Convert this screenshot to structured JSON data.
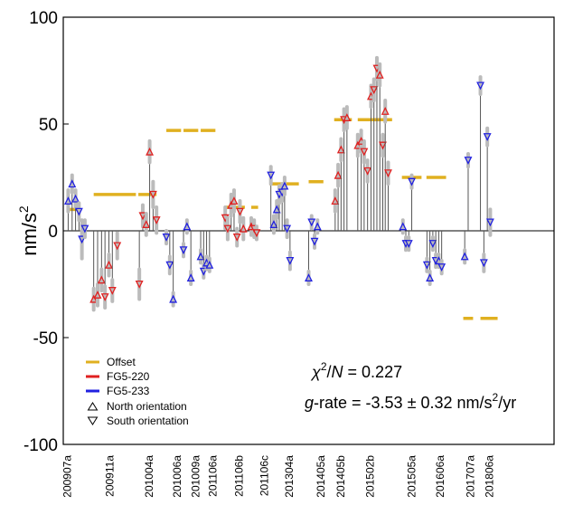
{
  "chart_data": {
    "type": "scatter",
    "ylabel": "nm/s",
    "ylabel_sup": "2",
    "ylim": [
      -100,
      100
    ],
    "yticks": [
      -100,
      -50,
      0,
      50,
      100
    ],
    "xtick_labels": [
      "200907a",
      "200911a",
      "201004a",
      "201006a",
      "201009a",
      "201106a",
      "201106b",
      "201106c",
      "201304a",
      "201405a",
      "201405b",
      "201502b",
      "201505a",
      "201606a",
      "201707a",
      "201806a"
    ],
    "legend": {
      "placement": "bottom-left",
      "offset": "Offset",
      "fg5_220": "FG5-220",
      "fg5_233": "FG5-233",
      "north": "North orientation",
      "south": "South orientation"
    },
    "annotations": {
      "chi_symbol": "χ",
      "chi_sup": "2",
      "chi_slash": "/",
      "chi_n": "N",
      "chi_value": "= 0.227",
      "g_symbol": "g",
      "grate_text": "-rate = -3.53 ± 0.32 nm/s",
      "grate_sup": "2",
      "grate_tail": "/yr"
    },
    "colors": {
      "offset": "#e0b020",
      "fg5_220": "#e02020",
      "fg5_233": "#2020e0",
      "stem": "#555555",
      "error": "#bbbbbb"
    },
    "offsets": [
      {
        "x1": 0.8,
        "x2": 3.5,
        "y": 10
      },
      {
        "x1": 6.2,
        "x2": 14.8,
        "y": 17
      },
      {
        "x1": 15.3,
        "x2": 19.0,
        "y": 17
      },
      {
        "x1": 21.0,
        "x2": 24.0,
        "y": 47
      },
      {
        "x1": 24.5,
        "x2": 27.5,
        "y": 47
      },
      {
        "x1": 28.0,
        "x2": 31.0,
        "y": 47
      },
      {
        "x1": 33.0,
        "x2": 37.0,
        "y": 11
      },
      {
        "x1": 38.3,
        "x2": 39.7,
        "y": 11
      },
      {
        "x1": 42.0,
        "x2": 48.0,
        "y": 22
      },
      {
        "x1": 50.0,
        "x2": 53.0,
        "y": 23
      },
      {
        "x1": 55.2,
        "x2": 58.8,
        "y": 52
      },
      {
        "x1": 60.0,
        "x2": 67.0,
        "y": 52
      },
      {
        "x1": 69.0,
        "x2": 73.0,
        "y": 25
      },
      {
        "x1": 74.0,
        "x2": 78.0,
        "y": 25
      },
      {
        "x1": 81.5,
        "x2": 83.5,
        "y": -41
      },
      {
        "x1": 85.0,
        "x2": 88.5,
        "y": -41
      }
    ],
    "points": [
      {
        "x": 1.0,
        "y": 14,
        "inst": "233",
        "orient": "N",
        "err": 5
      },
      {
        "x": 1.8,
        "y": 22,
        "inst": "233",
        "orient": "N",
        "err": 4
      },
      {
        "x": 2.5,
        "y": 15,
        "inst": "233",
        "orient": "N",
        "err": 4
      },
      {
        "x": 3.2,
        "y": 9,
        "inst": "233",
        "orient": "S",
        "err": 4
      },
      {
        "x": 3.8,
        "y": -4,
        "inst": "233",
        "orient": "S",
        "err": 9
      },
      {
        "x": 4.4,
        "y": 1,
        "inst": "233",
        "orient": "S",
        "err": 4
      },
      {
        "x": 6.2,
        "y": -32,
        "inst": "220",
        "orient": "N",
        "err": 5
      },
      {
        "x": 7.0,
        "y": -30,
        "inst": "220",
        "orient": "N",
        "err": 5
      },
      {
        "x": 7.8,
        "y": -23,
        "inst": "220",
        "orient": "N",
        "err": 5
      },
      {
        "x": 8.5,
        "y": -31,
        "inst": "220",
        "orient": "S",
        "err": 5
      },
      {
        "x": 9.3,
        "y": -16,
        "inst": "220",
        "orient": "N",
        "err": 5
      },
      {
        "x": 10.0,
        "y": -28,
        "inst": "220",
        "orient": "S",
        "err": 5
      },
      {
        "x": 11.0,
        "y": -7,
        "inst": "220",
        "orient": "S",
        "err": 6
      },
      {
        "x": 15.5,
        "y": -25,
        "inst": "220",
        "orient": "S",
        "err": 7
      },
      {
        "x": 16.2,
        "y": 7,
        "inst": "220",
        "orient": "S",
        "err": 5
      },
      {
        "x": 16.9,
        "y": 3,
        "inst": "220",
        "orient": "N",
        "err": 5
      },
      {
        "x": 17.6,
        "y": 37,
        "inst": "220",
        "orient": "N",
        "err": 5
      },
      {
        "x": 18.3,
        "y": 17,
        "inst": "220",
        "orient": "S",
        "err": 6
      },
      {
        "x": 19.0,
        "y": 5,
        "inst": "220",
        "orient": "S",
        "err": 6
      },
      {
        "x": 21.0,
        "y": -3,
        "inst": "233",
        "orient": "S",
        "err": 3
      },
      {
        "x": 21.7,
        "y": -16,
        "inst": "233",
        "orient": "S",
        "err": 4
      },
      {
        "x": 22.4,
        "y": -32,
        "inst": "233",
        "orient": "N",
        "err": 3
      },
      {
        "x": 24.5,
        "y": -9,
        "inst": "233",
        "orient": "S",
        "err": 3
      },
      {
        "x": 25.2,
        "y": 2,
        "inst": "233",
        "orient": "N",
        "err": 3
      },
      {
        "x": 26.0,
        "y": -22,
        "inst": "233",
        "orient": "N",
        "err": 3
      },
      {
        "x": 28.0,
        "y": -12,
        "inst": "233",
        "orient": "N",
        "err": 3
      },
      {
        "x": 28.6,
        "y": -19,
        "inst": "233",
        "orient": "S",
        "err": 3
      },
      {
        "x": 29.2,
        "y": -15,
        "inst": "233",
        "orient": "N",
        "err": 3
      },
      {
        "x": 29.8,
        "y": -16,
        "inst": "233",
        "orient": "N",
        "err": 3
      },
      {
        "x": 33.0,
        "y": 6,
        "inst": "220",
        "orient": "S",
        "err": 5
      },
      {
        "x": 33.5,
        "y": 1,
        "inst": "220",
        "orient": "S",
        "err": 5
      },
      {
        "x": 34.2,
        "y": 12,
        "inst": "220",
        "orient": "N",
        "err": 5
      },
      {
        "x": 34.8,
        "y": 14,
        "inst": "220",
        "orient": "N",
        "err": 5
      },
      {
        "x": 35.4,
        "y": -3,
        "inst": "220",
        "orient": "S",
        "err": 4
      },
      {
        "x": 36.0,
        "y": 9,
        "inst": "220",
        "orient": "S",
        "err": 5
      },
      {
        "x": 36.7,
        "y": 1,
        "inst": "220",
        "orient": "N",
        "err": 5
      },
      {
        "x": 38.3,
        "y": 2,
        "inst": "220",
        "orient": "N",
        "err": 4
      },
      {
        "x": 38.9,
        "y": 1,
        "inst": "220",
        "orient": "S",
        "err": 4
      },
      {
        "x": 39.4,
        "y": -1,
        "inst": "220",
        "orient": "S",
        "err": 3
      },
      {
        "x": 42.3,
        "y": 26,
        "inst": "233",
        "orient": "S",
        "err": 4
      },
      {
        "x": 42.9,
        "y": 3,
        "inst": "233",
        "orient": "N",
        "err": 4
      },
      {
        "x": 43.5,
        "y": 10,
        "inst": "233",
        "orient": "N",
        "err": 4
      },
      {
        "x": 44.0,
        "y": 17,
        "inst": "233",
        "orient": "S",
        "err": 4
      },
      {
        "x": 44.6,
        "y": 18,
        "inst": "233",
        "orient": "S",
        "err": 4
      },
      {
        "x": 45.1,
        "y": 21,
        "inst": "233",
        "orient": "N",
        "err": 4
      },
      {
        "x": 45.6,
        "y": 1,
        "inst": "233",
        "orient": "S",
        "err": 4
      },
      {
        "x": 46.2,
        "y": -14,
        "inst": "233",
        "orient": "S",
        "err": 4
      },
      {
        "x": 50.0,
        "y": -22,
        "inst": "233",
        "orient": "N",
        "err": 3
      },
      {
        "x": 50.6,
        "y": 4,
        "inst": "233",
        "orient": "S",
        "err": 3
      },
      {
        "x": 51.2,
        "y": -5,
        "inst": "233",
        "orient": "S",
        "err": 3
      },
      {
        "x": 51.8,
        "y": 2,
        "inst": "233",
        "orient": "N",
        "err": 3
      },
      {
        "x": 55.4,
        "y": 14,
        "inst": "220",
        "orient": "N",
        "err": 5
      },
      {
        "x": 56.0,
        "y": 26,
        "inst": "220",
        "orient": "N",
        "err": 5
      },
      {
        "x": 56.6,
        "y": 38,
        "inst": "220",
        "orient": "N",
        "err": 5
      },
      {
        "x": 57.2,
        "y": 52,
        "inst": "220",
        "orient": "S",
        "err": 5
      },
      {
        "x": 57.8,
        "y": 53,
        "inst": "220",
        "orient": "N",
        "err": 5
      },
      {
        "x": 60.0,
        "y": 40,
        "inst": "220",
        "orient": "N",
        "err": 5
      },
      {
        "x": 60.7,
        "y": 42,
        "inst": "220",
        "orient": "N",
        "err": 5
      },
      {
        "x": 61.3,
        "y": 37,
        "inst": "220",
        "orient": "S",
        "err": 5
      },
      {
        "x": 62.0,
        "y": 28,
        "inst": "220",
        "orient": "S",
        "err": 5
      },
      {
        "x": 62.7,
        "y": 63,
        "inst": "220",
        "orient": "N",
        "err": 5
      },
      {
        "x": 63.3,
        "y": 66,
        "inst": "220",
        "orient": "S",
        "err": 5
      },
      {
        "x": 63.9,
        "y": 76,
        "inst": "220",
        "orient": "S",
        "err": 5
      },
      {
        "x": 64.5,
        "y": 73,
        "inst": "220",
        "orient": "N",
        "err": 5
      },
      {
        "x": 65.1,
        "y": 40,
        "inst": "220",
        "orient": "S",
        "err": 5
      },
      {
        "x": 65.6,
        "y": 56,
        "inst": "220",
        "orient": "N",
        "err": 5
      },
      {
        "x": 66.2,
        "y": 27,
        "inst": "220",
        "orient": "S",
        "err": 5
      },
      {
        "x": 69.2,
        "y": 2,
        "inst": "233",
        "orient": "N",
        "err": 3
      },
      {
        "x": 69.8,
        "y": -6,
        "inst": "233",
        "orient": "S",
        "err": 3
      },
      {
        "x": 70.4,
        "y": -6,
        "inst": "233",
        "orient": "S",
        "err": 3
      },
      {
        "x": 71.0,
        "y": 23,
        "inst": "233",
        "orient": "S",
        "err": 3
      },
      {
        "x": 74.1,
        "y": -16,
        "inst": "233",
        "orient": "S",
        "err": 3
      },
      {
        "x": 74.7,
        "y": -22,
        "inst": "233",
        "orient": "N",
        "err": 3
      },
      {
        "x": 75.3,
        "y": -6,
        "inst": "233",
        "orient": "S",
        "err": 3
      },
      {
        "x": 75.9,
        "y": -14,
        "inst": "233",
        "orient": "S",
        "err": 3
      },
      {
        "x": 76.5,
        "y": -14,
        "inst": "233",
        "orient": "N",
        "err": 3
      },
      {
        "x": 77.1,
        "y": -17,
        "inst": "233",
        "orient": "S",
        "err": 3
      },
      {
        "x": 81.8,
        "y": -12,
        "inst": "233",
        "orient": "N",
        "err": 3
      },
      {
        "x": 82.5,
        "y": 33,
        "inst": "233",
        "orient": "S",
        "err": 3
      },
      {
        "x": 85.0,
        "y": 68,
        "inst": "233",
        "orient": "S",
        "err": 4
      },
      {
        "x": 85.7,
        "y": -15,
        "inst": "233",
        "orient": "S",
        "err": 4
      },
      {
        "x": 86.4,
        "y": 44,
        "inst": "233",
        "orient": "S",
        "err": 4
      },
      {
        "x": 87.0,
        "y": 4,
        "inst": "233",
        "orient": "S",
        "err": 6
      }
    ]
  }
}
